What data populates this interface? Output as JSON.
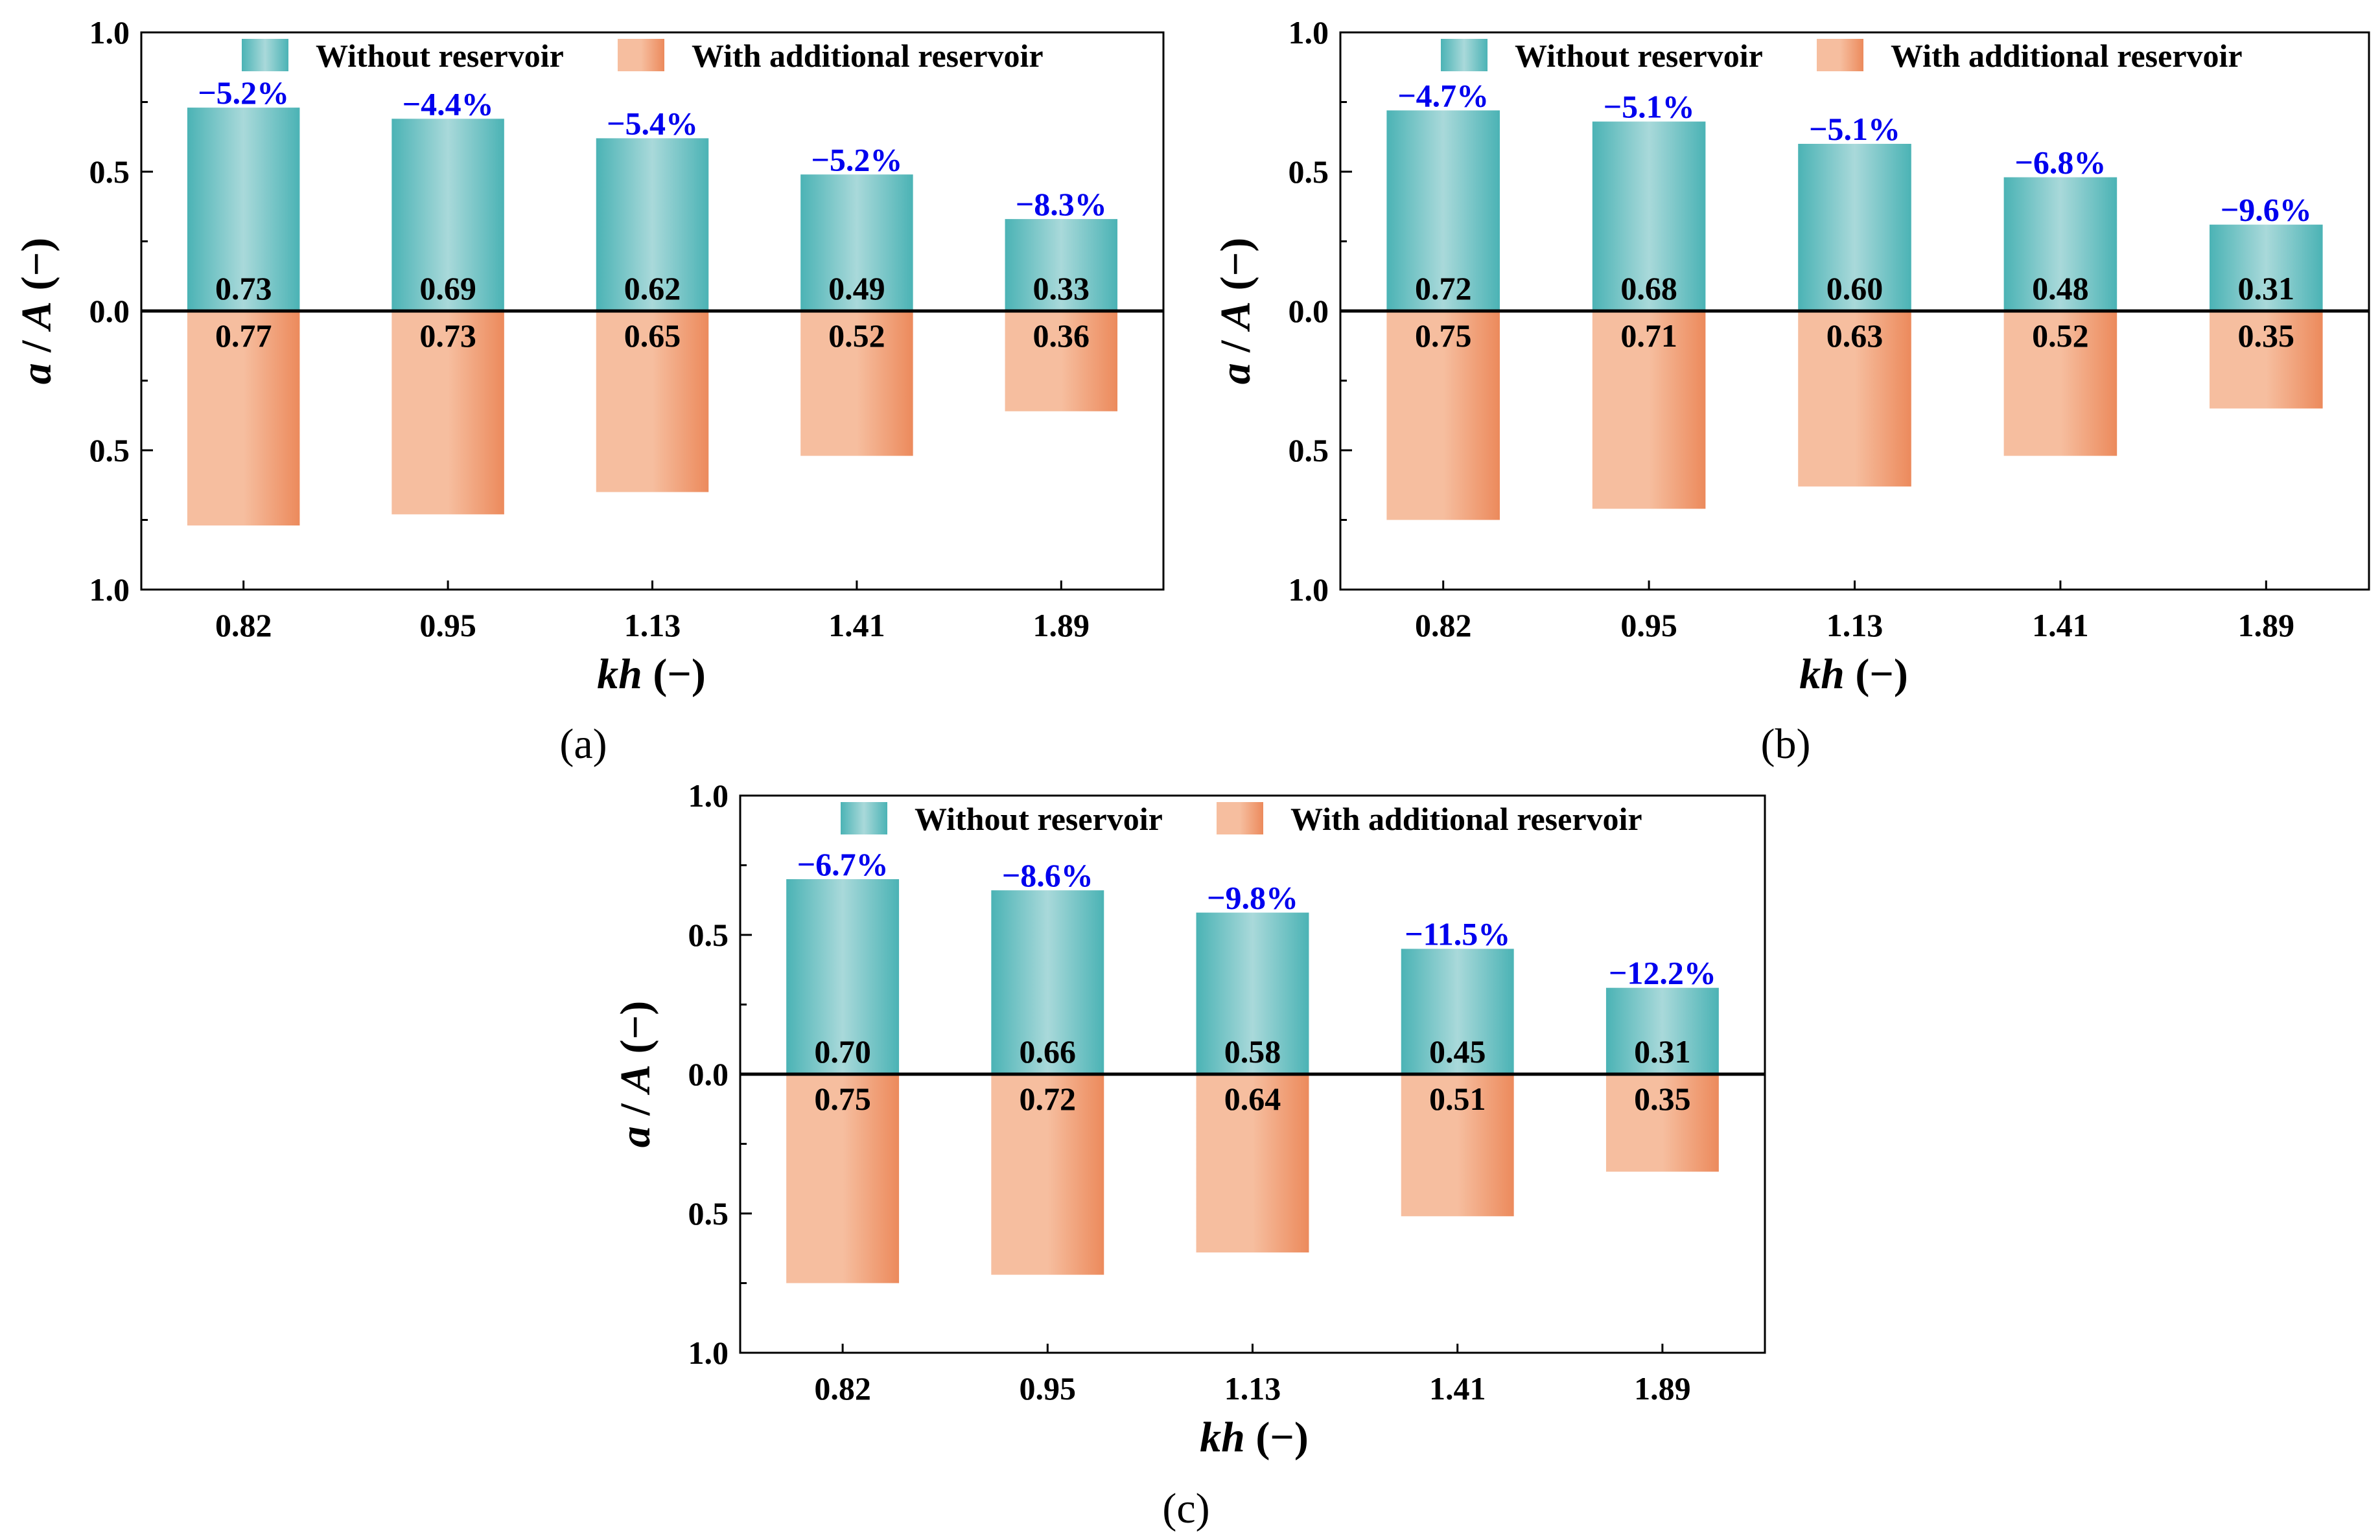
{
  "colors": {
    "teal": "#4bb3b5",
    "teal_light": "#a9d9da",
    "orange": "#ec8a5c",
    "orange_light": "#f6be9f",
    "percent_text": "#0000ee",
    "axis": "#000000"
  },
  "legend": {
    "without": "Without reservoir",
    "with": "With additional reservoir"
  },
  "axis_titles": {
    "y_var_a": "a",
    "y_slash": " / ",
    "y_var_A": "A",
    "y_unit": " (−)",
    "x_var": "kh",
    "x_unit": " (−)"
  },
  "chart_data": [
    {
      "type": "bar",
      "panel_label": "(a)",
      "title": "",
      "xlabel": "kh (−)",
      "ylabel": "a / A (−)",
      "ylim": [
        -1.0,
        1.0
      ],
      "yticks": [
        1.0,
        0.5,
        0.0,
        0.5,
        1.0
      ],
      "ytick_labels": [
        "1.0",
        "0.5",
        "0.0",
        "0.5",
        "1.0"
      ],
      "categories": [
        "0.82",
        "0.95",
        "1.13",
        "1.41",
        "1.89"
      ],
      "series": [
        {
          "name": "Without reservoir",
          "direction": "up",
          "values": [
            0.73,
            0.69,
            0.62,
            0.49,
            0.33
          ],
          "labels": [
            "0.73",
            "0.69",
            "0.62",
            "0.49",
            "0.33"
          ]
        },
        {
          "name": "With additional reservoir",
          "direction": "down",
          "values": [
            0.77,
            0.73,
            0.65,
            0.52,
            0.36
          ],
          "labels": [
            "0.77",
            "0.73",
            "0.65",
            "0.52",
            "0.36"
          ]
        }
      ],
      "percent_changes": [
        "−5.2%",
        "−4.4%",
        "−5.4%",
        "−5.2%",
        "−8.3%"
      ]
    },
    {
      "type": "bar",
      "panel_label": "(b)",
      "title": "",
      "xlabel": "kh (−)",
      "ylabel": "a / A (−)",
      "ylim": [
        -1.0,
        1.0
      ],
      "yticks": [
        1.0,
        0.5,
        0.0,
        0.5,
        1.0
      ],
      "ytick_labels": [
        "1.0",
        "0.5",
        "0.0",
        "0.5",
        "1.0"
      ],
      "categories": [
        "0.82",
        "0.95",
        "1.13",
        "1.41",
        "1.89"
      ],
      "series": [
        {
          "name": "Without reservoir",
          "direction": "up",
          "values": [
            0.72,
            0.68,
            0.6,
            0.48,
            0.31
          ],
          "labels": [
            "0.72",
            "0.68",
            "0.60",
            "0.48",
            "0.31"
          ]
        },
        {
          "name": "With additional reservoir",
          "direction": "down",
          "values": [
            0.75,
            0.71,
            0.63,
            0.52,
            0.35
          ],
          "labels": [
            "0.75",
            "0.71",
            "0.63",
            "0.52",
            "0.35"
          ]
        }
      ],
      "percent_changes": [
        "−4.7%",
        "−5.1%",
        "−5.1%",
        "−6.8%",
        "−9.6%"
      ]
    },
    {
      "type": "bar",
      "panel_label": "(c)",
      "title": "",
      "xlabel": "kh (−)",
      "ylabel": "a / A (−)",
      "ylim": [
        -1.0,
        1.0
      ],
      "yticks": [
        1.0,
        0.5,
        0.0,
        0.5,
        1.0
      ],
      "ytick_labels": [
        "1.0",
        "0.5",
        "0.0",
        "0.5",
        "1.0"
      ],
      "categories": [
        "0.82",
        "0.95",
        "1.13",
        "1.41",
        "1.89"
      ],
      "series": [
        {
          "name": "Without reservoir",
          "direction": "up",
          "values": [
            0.7,
            0.66,
            0.58,
            0.45,
            0.31
          ],
          "labels": [
            "0.70",
            "0.66",
            "0.58",
            "0.45",
            "0.31"
          ]
        },
        {
          "name": "With additional reservoir",
          "direction": "down",
          "values": [
            0.75,
            0.72,
            0.64,
            0.51,
            0.35
          ],
          "labels": [
            "0.75",
            "0.72",
            "0.64",
            "0.51",
            "0.35"
          ]
        }
      ],
      "percent_changes": [
        "−6.7%",
        "−8.6%",
        "−9.8%",
        "−11.5%",
        "−12.2%"
      ]
    }
  ]
}
